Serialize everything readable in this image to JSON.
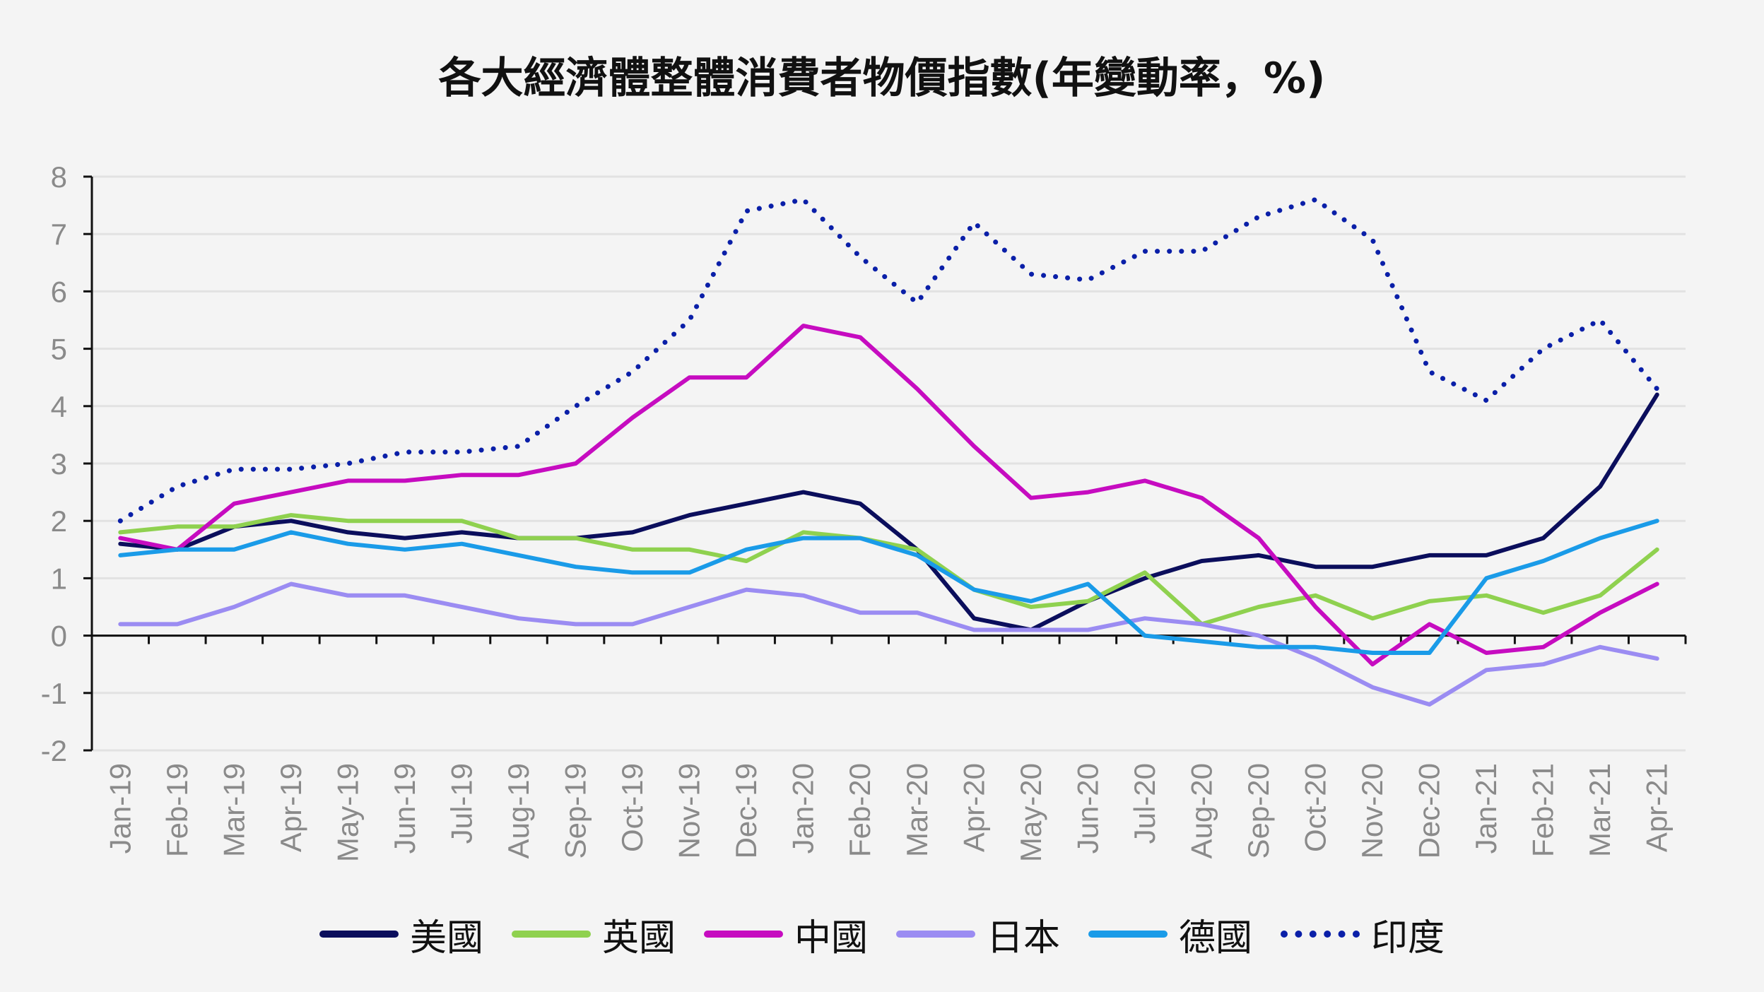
{
  "chart_data": {
    "type": "line",
    "title": "各大經濟體整體消費者物價指數(年變動率，%)",
    "xlabel": "",
    "ylabel": "",
    "ylim": [
      -2,
      8
    ],
    "yticks": [
      "8",
      "7",
      "6",
      "5",
      "4",
      "3",
      "2",
      "1",
      "0",
      "-1",
      "-2"
    ],
    "grid": "horizontal",
    "legend_position": "bottom",
    "categories": [
      "Jan-19",
      "Feb-19",
      "Mar-19",
      "Apr-19",
      "May-19",
      "Jun-19",
      "Jul-19",
      "Aug-19",
      "Sep-19",
      "Oct-19",
      "Nov-19",
      "Dec-19",
      "Jan-20",
      "Feb-20",
      "Mar-20",
      "Apr-20",
      "May-20",
      "Jun-20",
      "Jul-20",
      "Aug-20",
      "Sep-20",
      "Oct-20",
      "Nov-20",
      "Dec-20",
      "Jan-21",
      "Feb-21",
      "Mar-21",
      "Apr-21"
    ],
    "series": [
      {
        "name": "美國",
        "color": "#0b0e5c",
        "style": "solid",
        "values": [
          1.6,
          1.5,
          1.9,
          2.0,
          1.8,
          1.7,
          1.8,
          1.7,
          1.7,
          1.8,
          2.1,
          2.3,
          2.5,
          2.3,
          1.5,
          0.3,
          0.1,
          0.6,
          1.0,
          1.3,
          1.4,
          1.2,
          1.2,
          1.4,
          1.4,
          1.7,
          2.6,
          4.2
        ]
      },
      {
        "name": "英國",
        "color": "#8fd14f",
        "style": "solid",
        "values": [
          1.8,
          1.9,
          1.9,
          2.1,
          2.0,
          2.0,
          2.0,
          1.7,
          1.7,
          1.5,
          1.5,
          1.3,
          1.8,
          1.7,
          1.5,
          0.8,
          0.5,
          0.6,
          1.1,
          0.2,
          0.5,
          0.7,
          0.3,
          0.6,
          0.7,
          0.4,
          0.7,
          1.5
        ]
      },
      {
        "name": "中國",
        "color": "#c60cc0",
        "style": "solid",
        "values": [
          1.7,
          1.5,
          2.3,
          2.5,
          2.7,
          2.7,
          2.8,
          2.8,
          3.0,
          3.8,
          4.5,
          4.5,
          5.4,
          5.2,
          4.3,
          3.3,
          2.4,
          2.5,
          2.7,
          2.4,
          1.7,
          0.5,
          -0.5,
          0.2,
          -0.3,
          -0.2,
          0.4,
          0.9
        ]
      },
      {
        "name": "日本",
        "color": "#9b8cf2",
        "style": "solid",
        "values": [
          0.2,
          0.2,
          0.5,
          0.9,
          0.7,
          0.7,
          0.5,
          0.3,
          0.2,
          0.2,
          0.5,
          0.8,
          0.7,
          0.4,
          0.4,
          0.1,
          0.1,
          0.1,
          0.3,
          0.2,
          0.0,
          -0.4,
          -0.9,
          -1.2,
          -0.6,
          -0.5,
          -0.2,
          -0.4
        ]
      },
      {
        "name": "德國",
        "color": "#1a9be8",
        "style": "solid",
        "values": [
          1.4,
          1.5,
          1.5,
          1.8,
          1.6,
          1.5,
          1.6,
          1.4,
          1.2,
          1.1,
          1.1,
          1.5,
          1.7,
          1.7,
          1.4,
          0.8,
          0.6,
          0.9,
          0.0,
          -0.1,
          -0.2,
          -0.2,
          -0.3,
          -0.3,
          1.0,
          1.3,
          1.7,
          2.0
        ]
      },
      {
        "name": "印度",
        "color": "#0a1fa8",
        "style": "dotted",
        "values": [
          2.0,
          2.6,
          2.9,
          2.9,
          3.0,
          3.2,
          3.2,
          3.3,
          4.0,
          4.6,
          5.5,
          7.4,
          7.6,
          6.6,
          5.8,
          7.2,
          6.3,
          6.2,
          6.7,
          6.7,
          7.3,
          7.6,
          6.9,
          4.6,
          4.1,
          5.0,
          5.5,
          4.3
        ]
      }
    ]
  }
}
